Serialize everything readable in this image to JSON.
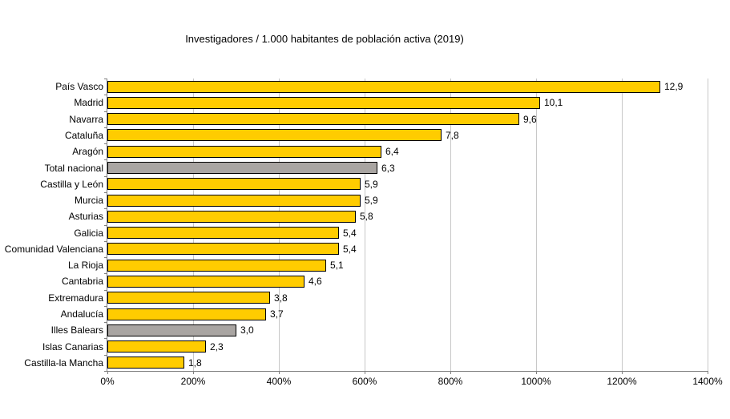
{
  "chart_data": {
    "type": "bar",
    "orientation": "horizontal",
    "title": "Investigadores / 1.000 habitantes de población activa (2019)",
    "xlabel": "",
    "ylabel": "",
    "categories": [
      "País Vasco",
      "Madrid",
      "Navarra",
      "Cataluña",
      "Aragón",
      "Total nacional",
      "Castilla y León",
      "Murcia",
      "Asturias",
      "Galicia",
      "Comunidad Valenciana",
      "La Rioja",
      "Cantabria",
      "Extremadura",
      "Andalucía",
      "Illes Balears",
      "Islas Canarias",
      "Castilla-la Mancha"
    ],
    "values": [
      12.9,
      10.1,
      9.6,
      7.8,
      6.4,
      6.3,
      5.9,
      5.9,
      5.8,
      5.4,
      5.4,
      5.1,
      4.6,
      3.8,
      3.7,
      3.0,
      2.3,
      1.8
    ],
    "display_values": [
      "12,9",
      "10,1",
      "9,6",
      "7,8",
      "6,4",
      "6,3",
      "5,9",
      "5,9",
      "5,8",
      "5,4",
      "5,4",
      "5,1",
      "4,6",
      "3,8",
      "3,7",
      "3,0",
      "2,3",
      "1,8"
    ],
    "bar_colors": [
      "#FFCC00",
      "#FFCC00",
      "#FFCC00",
      "#FFCC00",
      "#FFCC00",
      "#A9A5A2",
      "#FFCC00",
      "#FFCC00",
      "#FFCC00",
      "#FFCC00",
      "#FFCC00",
      "#FFCC00",
      "#FFCC00",
      "#FFCC00",
      "#FFCC00",
      "#A9A5A2",
      "#FFCC00",
      "#FFCC00"
    ],
    "highlight_categories": [
      "Total nacional",
      "Illes Balears"
    ],
    "xlim": [
      0,
      14
    ],
    "x_tick_labels": [
      "0%",
      "200%",
      "400%",
      "600%",
      "800%",
      "1000%",
      "1200%",
      "1400%"
    ],
    "x_tick_values": [
      0,
      2,
      4,
      6,
      8,
      10,
      12,
      14
    ],
    "grid": "vertical",
    "legend": "none",
    "colors": {
      "bar_default": "#FFCC00",
      "bar_highlight": "#A9A5A2",
      "bar_border": "#000000",
      "gridline": "#C8C8C8",
      "axis": "#808080",
      "text": "#000000",
      "background": "#FFFFFF"
    }
  }
}
